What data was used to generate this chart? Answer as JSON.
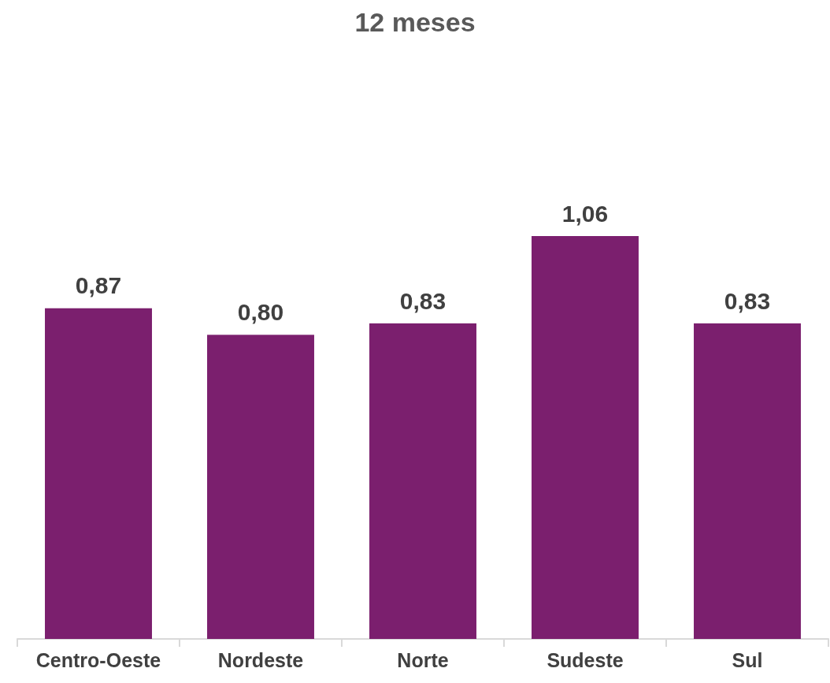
{
  "chart_data": {
    "type": "bar",
    "title": "12 meses",
    "categories": [
      "Centro-Oeste",
      "Nordeste",
      "Norte",
      "Sudeste",
      "Sul"
    ],
    "values": [
      0.87,
      0.8,
      0.83,
      1.06,
      0.83
    ],
    "value_labels": [
      "0,87",
      "0,80",
      "0,83",
      "1,06",
      "0,83"
    ],
    "color": "#7b1f6e",
    "grid": false
  }
}
